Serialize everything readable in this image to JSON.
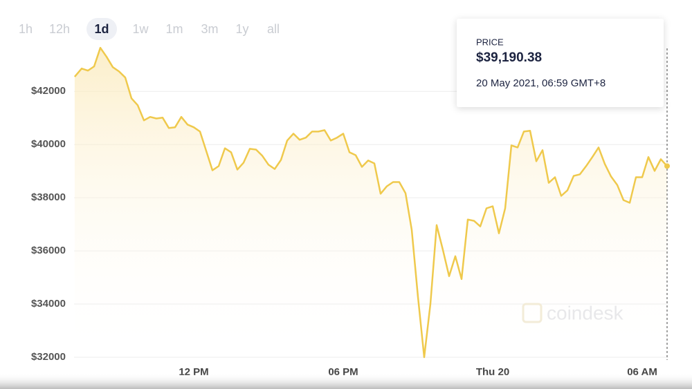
{
  "controls": {
    "ranges": [
      "1h",
      "12h",
      "1d",
      "1w",
      "1m",
      "3m",
      "1y",
      "all"
    ],
    "selected": 2
  },
  "watermark": "coindesk",
  "tooltip": {
    "heading": "PRICE",
    "price": "$39,190.38",
    "date": "20 May 2021, 06:59 GMT+8"
  },
  "chart_data": {
    "type": "line",
    "color": "#efc94c",
    "grid": true,
    "x": [
      7.22,
      7.5,
      7.75,
      8,
      8.25,
      8.5,
      8.75,
      9,
      9.25,
      9.5,
      9.75,
      10,
      10.25,
      10.5,
      10.75,
      11,
      11.25,
      11.5,
      11.75,
      12,
      12.25,
      12.5,
      12.75,
      13,
      13.25,
      13.5,
      13.75,
      14,
      14.25,
      14.5,
      14.75,
      15,
      15.25,
      15.5,
      15.75,
      16,
      16.25,
      16.5,
      16.75,
      17,
      17.25,
      17.5,
      17.75,
      18,
      18.25,
      18.5,
      18.75,
      19,
      19.25,
      19.5,
      19.75,
      20,
      20.25,
      20.5,
      20.75,
      21,
      21.25,
      21.5,
      21.75,
      22,
      22.25,
      22.5,
      22.75,
      23,
      23.25,
      23.5,
      23.75,
      24,
      24.25,
      24.5,
      24.75,
      25,
      25.25,
      25.5,
      25.75,
      26,
      26.25,
      26.5,
      26.75,
      27,
      27.25,
      27.5,
      27.75,
      28,
      28.25,
      28.5,
      28.75,
      29,
      29.25,
      29.5,
      29.75,
      30,
      30.25,
      30.5,
      30.75,
      31
    ],
    "values": [
      42550,
      42860,
      42780,
      42940,
      43640,
      43300,
      42910,
      42750,
      42520,
      41740,
      41480,
      40910,
      41040,
      40980,
      41010,
      40620,
      40650,
      41040,
      40750,
      40650,
      40490,
      39760,
      39030,
      39190,
      39860,
      39710,
      39060,
      39320,
      39840,
      39810,
      39580,
      39240,
      39080,
      39420,
      40150,
      40410,
      40180,
      40260,
      40490,
      40490,
      40540,
      40150,
      40260,
      40410,
      39710,
      39600,
      39160,
      39400,
      39290,
      38150,
      38430,
      38590,
      38590,
      38170,
      36790,
      34270,
      32000,
      34010,
      36970,
      36040,
      35050,
      35800,
      34940,
      37180,
      37130,
      36920,
      37600,
      37680,
      36660,
      37600,
      39970,
      39890,
      40490,
      40520,
      39370,
      39790,
      38560,
      38770,
      38070,
      38280,
      38820,
      38880,
      39190,
      39530,
      39890,
      39270,
      38800,
      38480,
      37910,
      37810,
      38770,
      38770,
      39530,
      39010,
      39450,
      39190.38
    ],
    "xlim": [
      7.2,
      31.05
    ],
    "xticks": [
      {
        "value": 12,
        "label": "12 PM"
      },
      {
        "value": 18,
        "label": "06 PM"
      },
      {
        "value": 24,
        "label": "Thu 20"
      },
      {
        "value": 30,
        "label": "06 AM"
      }
    ],
    "ylim": [
      32000,
      43800
    ],
    "yticks": [
      {
        "value": 32000,
        "label": "$32000"
      },
      {
        "value": 34000,
        "label": "$34000"
      },
      {
        "value": 36000,
        "label": "$36000"
      },
      {
        "value": 38000,
        "label": "$38000"
      },
      {
        "value": 40000,
        "label": "$40000"
      },
      {
        "value": 42000,
        "label": "$42000"
      }
    ]
  }
}
